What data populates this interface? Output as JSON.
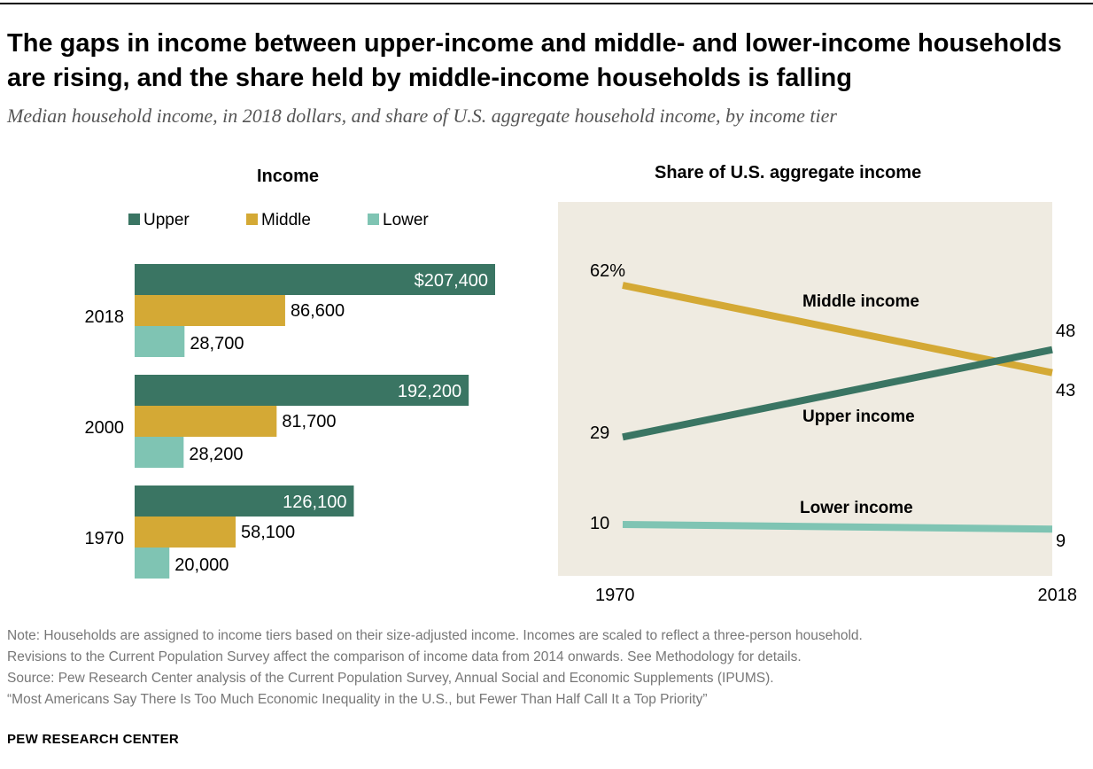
{
  "title": "The gaps in income between upper-income and middle- and lower-income households are rising, and the share held by middle-income households is falling",
  "subtitle": "Median household income, in 2018 dollars, and share of U.S. aggregate household income, by income tier",
  "colors": {
    "upper": "#3a7563",
    "middle": "#d4a935",
    "lower": "#7fc4b3",
    "plot_background": "#efebe1"
  },
  "chart_data": [
    {
      "type": "bar",
      "orientation": "horizontal",
      "title": "Income",
      "legend": [
        "Upper",
        "Middle",
        "Lower"
      ],
      "legend_placement": "top",
      "categories": [
        "2018",
        "2000",
        "1970"
      ],
      "series": [
        {
          "name": "Upper",
          "values": [
            207400,
            192200,
            126100
          ],
          "labels": [
            "$207,400",
            "192,200",
            "126,100"
          ]
        },
        {
          "name": "Middle",
          "values": [
            86600,
            81700,
            58100
          ],
          "labels": [
            "86,600",
            "81,700",
            "58,100"
          ]
        },
        {
          "name": "Lower",
          "values": [
            28700,
            28200,
            20000
          ],
          "labels": [
            "28,700",
            "28,200",
            "20,000"
          ]
        }
      ],
      "grid": false
    },
    {
      "type": "line",
      "title": "Share of U.S. aggregate income",
      "x": [
        1970,
        2018
      ],
      "x_tick_labels": [
        "1970",
        "2018"
      ],
      "ylim": [
        0,
        70
      ],
      "series": [
        {
          "name": "Middle income",
          "values": [
            62,
            43
          ],
          "labels": [
            "62%",
            "43"
          ]
        },
        {
          "name": "Upper income",
          "values": [
            29,
            48
          ],
          "labels": [
            "29",
            "48"
          ]
        },
        {
          "name": "Lower income",
          "values": [
            10,
            9
          ],
          "labels": [
            "10",
            "9"
          ]
        }
      ],
      "grid": false
    }
  ],
  "notes": [
    "Note: Households are assigned to income tiers based on their size-adjusted income. Incomes are scaled to reflect a three-person household.",
    "Revisions to the Current Population Survey affect the comparison of income data from 2014 onwards. See Methodology for details.",
    "Source: Pew Research Center analysis of the Current Population Survey, Annual Social and Economic Supplements (IPUMS).",
    "“Most Americans Say There Is Too Much Economic Inequality in the U.S., but Fewer Than Half Call It a Top Priority”"
  ],
  "brand": "PEW RESEARCH CENTER"
}
